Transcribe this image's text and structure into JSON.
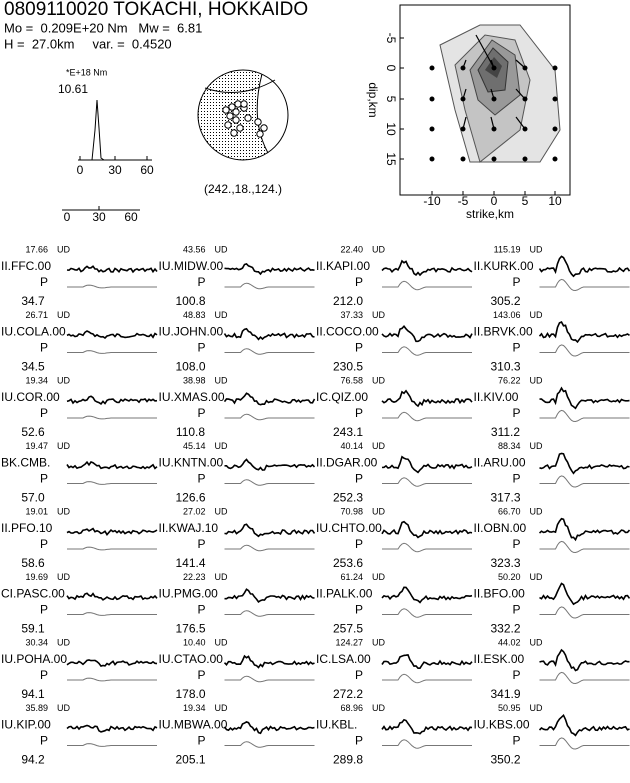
{
  "header": {
    "title": "0809110020 TOKACHI, HOKKAIDO",
    "line1": "Mo =  0.209E+20 Nm   Mw =  6.81",
    "line2": "H =  27.0km     var. =  0.4520"
  },
  "stf": {
    "unit": "*E+18 Nm",
    "max": "10.61",
    "xticks": [
      "0",
      "30",
      "60"
    ],
    "xticks2": [
      "0",
      "30",
      "60"
    ]
  },
  "mechanism": {
    "label": "(242.,18.,124.)"
  },
  "slip_map": {
    "xlabel": "strike,km",
    "ylabel": "dip,km",
    "xticks": [
      "-10",
      "-5",
      "0",
      "5",
      "10"
    ],
    "yticks": [
      "-5",
      "0",
      "5",
      "10",
      "15"
    ]
  },
  "stations": [
    {
      "amp": "17.66",
      "comp": "UD",
      "name": "II.FFC.00",
      "phase": "P",
      "az": "34.7"
    },
    {
      "amp": "26.71",
      "comp": "UD",
      "name": "IU.COLA.00",
      "phase": "P",
      "az": "34.5"
    },
    {
      "amp": "19.34",
      "comp": "UD",
      "name": "IU.COR.00",
      "phase": "P",
      "az": "52.6"
    },
    {
      "amp": "19.47",
      "comp": "UD",
      "name": "BK.CMB.",
      "phase": "P",
      "az": "57.0"
    },
    {
      "amp": "19.01",
      "comp": "UD",
      "name": "II.PFO.10",
      "phase": "P",
      "az": "58.6"
    },
    {
      "amp": "19.69",
      "comp": "UD",
      "name": "CI.PASC.00",
      "phase": "P",
      "az": "59.1"
    },
    {
      "amp": "30.34",
      "comp": "UD",
      "name": "IU.POHA.00",
      "phase": "P",
      "az": "94.1"
    },
    {
      "amp": "35.89",
      "comp": "UD",
      "name": "IU.KIP.00",
      "phase": "P",
      "az": "94.2"
    },
    {
      "amp": "43.56",
      "comp": "UD",
      "name": "IU.MIDW.00",
      "phase": "P",
      "az": "100.8"
    },
    {
      "amp": "48.83",
      "comp": "UD",
      "name": "IU.JOHN.00",
      "phase": "P",
      "az": "108.0"
    },
    {
      "amp": "38.98",
      "comp": "UD",
      "name": "IU.XMAS.00",
      "phase": "P",
      "az": "110.8"
    },
    {
      "amp": "45.14",
      "comp": "UD",
      "name": "IU.KNTN.00",
      "phase": "P",
      "az": "126.6"
    },
    {
      "amp": "27.02",
      "comp": "UD",
      "name": "II.KWAJ.10",
      "phase": "P",
      "az": "141.4"
    },
    {
      "amp": "22.23",
      "comp": "UD",
      "name": "IU.PMG.00",
      "phase": "P",
      "az": "176.5"
    },
    {
      "amp": "10.40",
      "comp": "UD",
      "name": "IU.CTAO.00",
      "phase": "P",
      "az": "178.0"
    },
    {
      "amp": "19.34",
      "comp": "UD",
      "name": "IU.MBWA.00",
      "phase": "P",
      "az": "205.1"
    },
    {
      "amp": "22.40",
      "comp": "UD",
      "name": "II.KAPI.00",
      "phase": "P",
      "az": "212.0"
    },
    {
      "amp": "37.33",
      "comp": "UD",
      "name": "II.COCO.00",
      "phase": "P",
      "az": "230.5"
    },
    {
      "amp": "76.58",
      "comp": "UD",
      "name": "IC.QIZ.00",
      "phase": "P",
      "az": "243.1"
    },
    {
      "amp": "40.14",
      "comp": "UD",
      "name": "II.DGAR.00",
      "phase": "P",
      "az": "252.3"
    },
    {
      "amp": "70.98",
      "comp": "UD",
      "name": "IU.CHTO.00",
      "phase": "P",
      "az": "253.6"
    },
    {
      "amp": "61.24",
      "comp": "UD",
      "name": "II.PALK.00",
      "phase": "P",
      "az": "257.5"
    },
    {
      "amp": "124.27",
      "comp": "UD",
      "name": "IC.LSA.00",
      "phase": "P",
      "az": "272.2"
    },
    {
      "amp": "68.96",
      "comp": "UD",
      "name": "IU.KBL.",
      "phase": "P",
      "az": "289.8"
    },
    {
      "amp": "115.19",
      "comp": "UD",
      "name": "II.KURK.00",
      "phase": "P",
      "az": "305.2"
    },
    {
      "amp": "143.06",
      "comp": "UD",
      "name": "II.BRVK.00",
      "phase": "P",
      "az": "310.3"
    },
    {
      "amp": "76.22",
      "comp": "UD",
      "name": "II.KIV.00",
      "phase": "P",
      "az": "311.2"
    },
    {
      "amp": "88.34",
      "comp": "UD",
      "name": "II.ARU.00",
      "phase": "P",
      "az": "317.3"
    },
    {
      "amp": "66.70",
      "comp": "UD",
      "name": "II.OBN.00",
      "phase": "P",
      "az": "323.3"
    },
    {
      "amp": "50.20",
      "comp": "UD",
      "name": "II.BFO.00",
      "phase": "P",
      "az": "332.2"
    },
    {
      "amp": "44.02",
      "comp": "UD",
      "name": "II.ESK.00",
      "phase": "P",
      "az": "341.9"
    },
    {
      "amp": "50.95",
      "comp": "UD",
      "name": "IU.KBS.00",
      "phase": "P",
      "az": "350.2"
    }
  ]
}
